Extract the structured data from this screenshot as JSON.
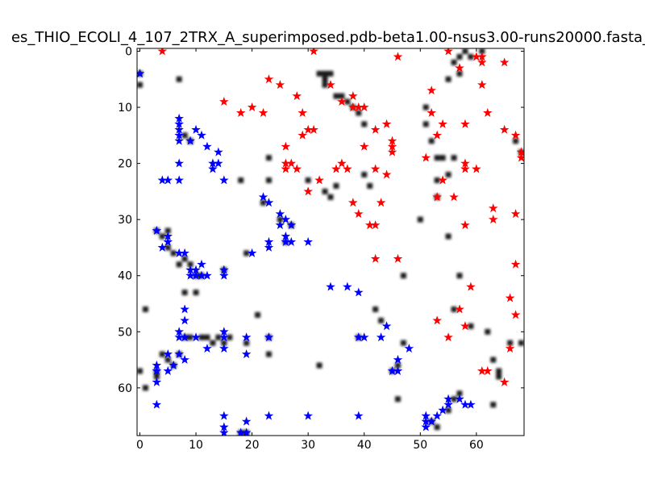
{
  "chart_data": {
    "type": "scatter",
    "title": "es_THIO_ECOLI_4_107_2TRX_A_superimposed.pdb-beta1.00-nsus3.00-runs20000.fasta_",
    "xlabel": "",
    "ylabel": "",
    "xlim": [
      -0.5,
      68.5
    ],
    "ylim": [
      68.5,
      -0.5
    ],
    "xticks": [
      0,
      10,
      20,
      30,
      40,
      50,
      60
    ],
    "yticks": [
      0,
      10,
      20,
      30,
      40,
      50,
      60
    ],
    "xtick_labels": [
      "0",
      "10",
      "20",
      "30",
      "40",
      "50",
      "60"
    ],
    "ytick_labels": [
      "0",
      "10",
      "20",
      "30",
      "40",
      "50",
      "60"
    ],
    "x_ticks_position": "top-and-bottom",
    "grid": false,
    "legend": false,
    "colors": {
      "red_series": "#ff0000",
      "blue_series": "#0000ff",
      "heatmap": "#000000"
    },
    "heatmap_points": [
      [
        0,
        6
      ],
      [
        0,
        4
      ],
      [
        1,
        46
      ],
      [
        0,
        57
      ],
      [
        1,
        60
      ],
      [
        3,
        57
      ],
      [
        3,
        58
      ],
      [
        3,
        32
      ],
      [
        4,
        33
      ],
      [
        5,
        32
      ],
      [
        5,
        35
      ],
      [
        5,
        55
      ],
      [
        6,
        36
      ],
      [
        7,
        38
      ],
      [
        8,
        37
      ],
      [
        9,
        38
      ],
      [
        10,
        40
      ],
      [
        11,
        40
      ],
      [
        8,
        15
      ],
      [
        9,
        16
      ],
      [
        7,
        5
      ],
      [
        8,
        51
      ],
      [
        9,
        51
      ],
      [
        11,
        51
      ],
      [
        12,
        51
      ],
      [
        13,
        52
      ],
      [
        14,
        51
      ],
      [
        15,
        52
      ],
      [
        16,
        51
      ],
      [
        8,
        43
      ],
      [
        7,
        54
      ],
      [
        6,
        56
      ],
      [
        4,
        54
      ],
      [
        10,
        43
      ],
      [
        15,
        39
      ],
      [
        19,
        52
      ],
      [
        23,
        19
      ],
      [
        23,
        23
      ],
      [
        22,
        27
      ],
      [
        25,
        30
      ],
      [
        26,
        34
      ],
      [
        27,
        31
      ],
      [
        23,
        54
      ],
      [
        21,
        47
      ],
      [
        23,
        51
      ],
      [
        18,
        23
      ],
      [
        19,
        36
      ],
      [
        30,
        23
      ],
      [
        32,
        4
      ],
      [
        33,
        4
      ],
      [
        33,
        6
      ],
      [
        34,
        4
      ],
      [
        35,
        8
      ],
      [
        36,
        8
      ],
      [
        37,
        9
      ],
      [
        38,
        10
      ],
      [
        39,
        11
      ],
      [
        40,
        13
      ],
      [
        34,
        26
      ],
      [
        35,
        24
      ],
      [
        33,
        25
      ],
      [
        40,
        22
      ],
      [
        41,
        24
      ],
      [
        42,
        46
      ],
      [
        43,
        48
      ],
      [
        47,
        52
      ],
      [
        47,
        40
      ],
      [
        50,
        30
      ],
      [
        51,
        13
      ],
      [
        52,
        16
      ],
      [
        51,
        10
      ],
      [
        55,
        5
      ],
      [
        56,
        2
      ],
      [
        57,
        1
      ],
      [
        58,
        0
      ],
      [
        57,
        4
      ],
      [
        59,
        1
      ],
      [
        61,
        0
      ],
      [
        53,
        19
      ],
      [
        54,
        19
      ],
      [
        53,
        23
      ],
      [
        55,
        22
      ],
      [
        56,
        19
      ],
      [
        53,
        26
      ],
      [
        55,
        33
      ],
      [
        57,
        40
      ],
      [
        56,
        46
      ],
      [
        59,
        49
      ],
      [
        62,
        50
      ],
      [
        63,
        55
      ],
      [
        64,
        57
      ],
      [
        63,
        63
      ],
      [
        64,
        58
      ],
      [
        66,
        52
      ],
      [
        68,
        52
      ],
      [
        67,
        16
      ],
      [
        68,
        18
      ],
      [
        55,
        64
      ],
      [
        56,
        62
      ],
      [
        57,
        61
      ],
      [
        53,
        67
      ],
      [
        52,
        66
      ],
      [
        46,
        62
      ],
      [
        46,
        56
      ],
      [
        45,
        57
      ],
      [
        39,
        51
      ],
      [
        32,
        56
      ],
      [
        18,
        68
      ],
      [
        19,
        68
      ],
      [
        33,
        5
      ]
    ],
    "series": [
      {
        "color": "#ff0000",
        "marker": "star",
        "points": [
          [
            4,
            0
          ],
          [
            31,
            0
          ],
          [
            46,
            1
          ],
          [
            60,
            1
          ],
          [
            61,
            1
          ],
          [
            61,
            2
          ],
          [
            65,
            2
          ],
          [
            55,
            0
          ],
          [
            57,
            3
          ],
          [
            23,
            5
          ],
          [
            25,
            6
          ],
          [
            28,
            8
          ],
          [
            34,
            6
          ],
          [
            15,
            9
          ],
          [
            20,
            10
          ],
          [
            22,
            11
          ],
          [
            18,
            11
          ],
          [
            29,
            11
          ],
          [
            30,
            14
          ],
          [
            31,
            14
          ],
          [
            29,
            15
          ],
          [
            36,
            9
          ],
          [
            38,
            8
          ],
          [
            38,
            10
          ],
          [
            39,
            10
          ],
          [
            40,
            10
          ],
          [
            42,
            14
          ],
          [
            44,
            13
          ],
          [
            45,
            16
          ],
          [
            45,
            17
          ],
          [
            45,
            18
          ],
          [
            40,
            17
          ],
          [
            36,
            20
          ],
          [
            35,
            21
          ],
          [
            37,
            21
          ],
          [
            32,
            23
          ],
          [
            26,
            17
          ],
          [
            26,
            20
          ],
          [
            26,
            21
          ],
          [
            27,
            20
          ],
          [
            28,
            21
          ],
          [
            30,
            25
          ],
          [
            38,
            27
          ],
          [
            39,
            29
          ],
          [
            41,
            31
          ],
          [
            42,
            31
          ],
          [
            43,
            27
          ],
          [
            42,
            21
          ],
          [
            44,
            22
          ],
          [
            52,
            11
          ],
          [
            53,
            15
          ],
          [
            54,
            13
          ],
          [
            58,
            13
          ],
          [
            62,
            11
          ],
          [
            65,
            14
          ],
          [
            67,
            15
          ],
          [
            68,
            19
          ],
          [
            68,
            18
          ],
          [
            58,
            20
          ],
          [
            58,
            21
          ],
          [
            60,
            21
          ],
          [
            54,
            23
          ],
          [
            53,
            26
          ],
          [
            56,
            26
          ],
          [
            58,
            31
          ],
          [
            63,
            28
          ],
          [
            63,
            30
          ],
          [
            67,
            29
          ],
          [
            59,
            42
          ],
          [
            67,
            38
          ],
          [
            66,
            44
          ],
          [
            67,
            47
          ],
          [
            57,
            46
          ],
          [
            53,
            48
          ],
          [
            55,
            51
          ],
          [
            58,
            49
          ],
          [
            61,
            57
          ],
          [
            62,
            57
          ],
          [
            65,
            59
          ],
          [
            66,
            53
          ],
          [
            42,
            37
          ],
          [
            46,
            37
          ],
          [
            52,
            7
          ],
          [
            51,
            19
          ],
          [
            61,
            6
          ]
        ]
      },
      {
        "color": "#0000ff",
        "marker": "star",
        "points": [
          [
            0,
            4
          ],
          [
            7,
            12
          ],
          [
            7,
            13
          ],
          [
            7,
            14
          ],
          [
            7,
            15
          ],
          [
            7,
            16
          ],
          [
            9,
            16
          ],
          [
            10,
            14
          ],
          [
            11,
            15
          ],
          [
            12,
            17
          ],
          [
            14,
            18
          ],
          [
            14,
            20
          ],
          [
            13,
            20
          ],
          [
            13,
            21
          ],
          [
            15,
            23
          ],
          [
            7,
            20
          ],
          [
            7,
            23
          ],
          [
            4,
            23
          ],
          [
            5,
            23
          ],
          [
            3,
            32
          ],
          [
            4,
            35
          ],
          [
            5,
            34
          ],
          [
            5,
            33
          ],
          [
            7,
            36
          ],
          [
            8,
            36
          ],
          [
            9,
            39
          ],
          [
            9,
            40
          ],
          [
            10,
            40
          ],
          [
            10,
            39
          ],
          [
            11,
            38
          ],
          [
            11,
            40
          ],
          [
            12,
            40
          ],
          [
            15,
            39
          ],
          [
            15,
            40
          ],
          [
            8,
            46
          ],
          [
            8,
            48
          ],
          [
            7,
            50
          ],
          [
            7,
            51
          ],
          [
            8,
            51
          ],
          [
            10,
            51
          ],
          [
            12,
            53
          ],
          [
            15,
            50
          ],
          [
            15,
            51
          ],
          [
            15,
            53
          ],
          [
            7,
            54
          ],
          [
            8,
            55
          ],
          [
            6,
            56
          ],
          [
            5,
            57
          ],
          [
            5,
            54
          ],
          [
            3,
            56
          ],
          [
            3,
            57
          ],
          [
            3,
            59
          ],
          [
            3,
            63
          ],
          [
            19,
            51
          ],
          [
            19,
            54
          ],
          [
            23,
            51
          ],
          [
            22,
            26
          ],
          [
            23,
            27
          ],
          [
            25,
            29
          ],
          [
            26,
            30
          ],
          [
            27,
            31
          ],
          [
            25,
            31
          ],
          [
            26,
            33
          ],
          [
            26,
            34
          ],
          [
            27,
            34
          ],
          [
            23,
            34
          ],
          [
            23,
            35
          ],
          [
            20,
            36
          ],
          [
            30,
            34
          ],
          [
            34,
            42
          ],
          [
            37,
            42
          ],
          [
            39,
            43
          ],
          [
            39,
            51
          ],
          [
            40,
            51
          ],
          [
            43,
            51
          ],
          [
            44,
            49
          ],
          [
            45,
            57
          ],
          [
            46,
            57
          ],
          [
            46,
            55
          ],
          [
            48,
            53
          ],
          [
            15,
            65
          ],
          [
            15,
            67
          ],
          [
            15,
            68
          ],
          [
            18,
            68
          ],
          [
            19,
            68
          ],
          [
            19,
            66
          ],
          [
            23,
            65
          ],
          [
            30,
            65
          ],
          [
            39,
            65
          ],
          [
            51,
            65
          ],
          [
            51,
            66
          ],
          [
            51,
            67
          ],
          [
            52,
            66
          ],
          [
            53,
            65
          ],
          [
            54,
            64
          ],
          [
            55,
            63
          ],
          [
            55,
            62
          ],
          [
            57,
            62
          ],
          [
            58,
            63
          ],
          [
            59,
            63
          ]
        ]
      }
    ]
  }
}
